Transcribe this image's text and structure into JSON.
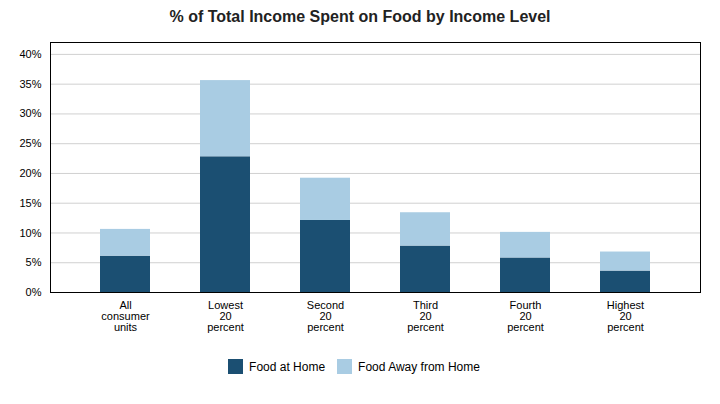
{
  "chart_data": {
    "type": "bar",
    "stacked": true,
    "title": "% of Total Income Spent on Food by Income Level",
    "categories": [
      "All\nconsumer\nunits",
      "Lowest\n20\npercent",
      "Second\n20\npercent",
      "Third\n20\npercent",
      "Fourth\n20\npercent",
      "Highest\n20\npercent"
    ],
    "series": [
      {
        "name": "Food at Home",
        "color": "#1B4F72",
        "values": [
          6.1,
          22.8,
          12.1,
          7.8,
          5.8,
          3.6
        ]
      },
      {
        "name": "Food Away from Home",
        "color": "#A9CCE3",
        "values": [
          4.5,
          12.8,
          7.1,
          5.6,
          4.3,
          3.2
        ]
      }
    ],
    "ylim": [
      0,
      42
    ],
    "yticks": [
      {
        "value": 0,
        "label": "0%"
      },
      {
        "value": 5,
        "label": "5%"
      },
      {
        "value": 10,
        "label": "10%"
      },
      {
        "value": 15,
        "label": "15%"
      },
      {
        "value": 20,
        "label": "20%"
      },
      {
        "value": 25,
        "label": "25%"
      },
      {
        "value": 30,
        "label": "30%"
      },
      {
        "value": 35,
        "label": "35%"
      },
      {
        "value": 40,
        "label": "40%"
      }
    ],
    "grid": true,
    "legend": "bottom"
  }
}
